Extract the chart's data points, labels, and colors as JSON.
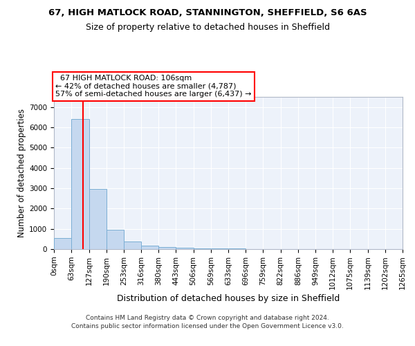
{
  "title1": "67, HIGH MATLOCK ROAD, STANNINGTON, SHEFFIELD, S6 6AS",
  "title2": "Size of property relative to detached houses in Sheffield",
  "xlabel": "Distribution of detached houses by size in Sheffield",
  "ylabel": "Number of detached properties",
  "footer1": "Contains HM Land Registry data © Crown copyright and database right 2024.",
  "footer2": "Contains public sector information licensed under the Open Government Licence v3.0.",
  "bin_edges": [
    0,
    63,
    127,
    190,
    253,
    316,
    380,
    443,
    506,
    569,
    633,
    696,
    759,
    822,
    886,
    949,
    1012,
    1075,
    1139,
    1202,
    1265
  ],
  "bin_heights": [
    550,
    6400,
    2950,
    970,
    380,
    175,
    110,
    80,
    45,
    28,
    18,
    12,
    10,
    8,
    6,
    5,
    4,
    3,
    2,
    2
  ],
  "bar_color": "#c5d8ef",
  "bar_edge_color": "#7aaed4",
  "property_size": 106,
  "property_label": "67 HIGH MATLOCK ROAD: 106sqm",
  "smaller_pct": 42,
  "smaller_count": 4787,
  "larger_pct": 57,
  "larger_count": 6437,
  "vline_color": "red",
  "ylim": [
    0,
    7500
  ],
  "yticks": [
    0,
    1000,
    2000,
    3000,
    4000,
    5000,
    6000,
    7000
  ],
  "background_color": "#edf2fa",
  "grid_color": "white",
  "title1_fontsize": 9.5,
  "title2_fontsize": 9,
  "ylabel_fontsize": 8.5,
  "xlabel_fontsize": 9,
  "tick_fontsize": 7.5,
  "ann_fontsize": 8
}
